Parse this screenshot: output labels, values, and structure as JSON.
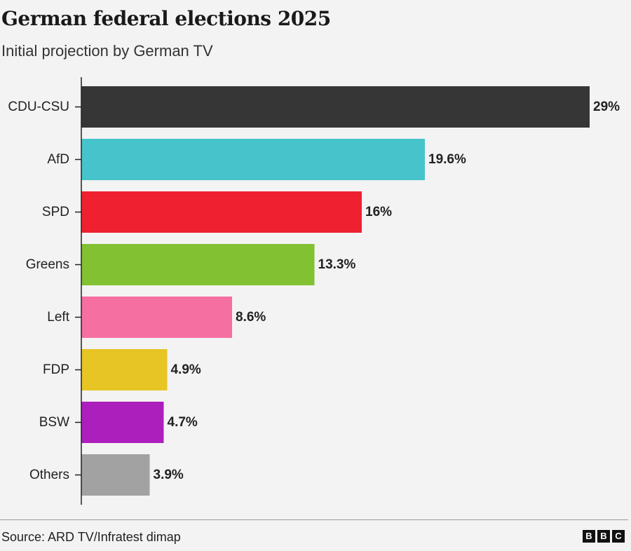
{
  "chart_data": {
    "type": "bar",
    "orientation": "horizontal",
    "title": "German federal elections 2025",
    "subtitle": "Initial projection by German TV",
    "categories": [
      "CDU-CSU",
      "AfD",
      "SPD",
      "Greens",
      "Left",
      "FDP",
      "BSW",
      "Others"
    ],
    "values": [
      29,
      19.6,
      16,
      13.3,
      8.6,
      4.9,
      4.7,
      3.9
    ],
    "value_labels": [
      "29%",
      "19.6%",
      "16%",
      "13.3%",
      "8.6%",
      "4.9%",
      "4.7%",
      "3.9%"
    ],
    "colors": [
      "#363636",
      "#47c4cb",
      "#ef2130",
      "#81c132",
      "#f66fa1",
      "#e7c524",
      "#ad1fbc",
      "#a2a2a2"
    ],
    "xlim": [
      0,
      29
    ],
    "grid": false,
    "legend": "none"
  },
  "footer": {
    "source": "Source: ARD TV/Infratest dimap",
    "logo_letters": [
      "B",
      "B",
      "C"
    ]
  }
}
